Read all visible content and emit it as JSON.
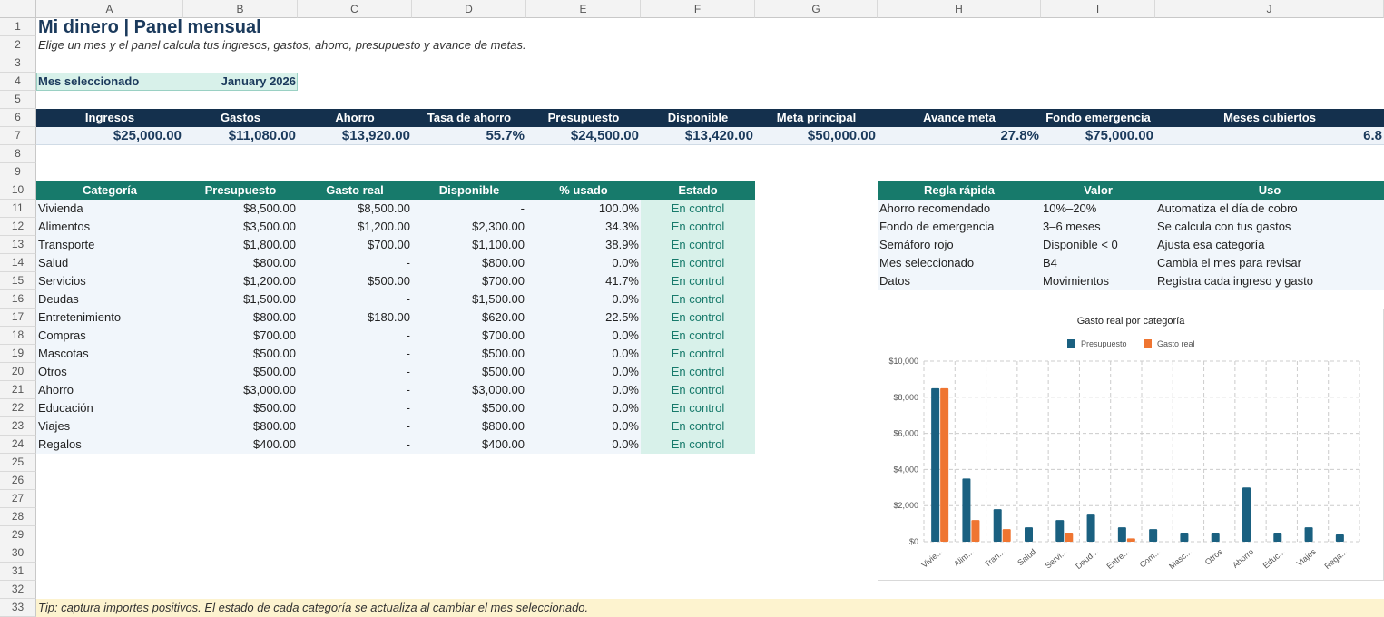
{
  "columns": [
    "A",
    "B",
    "C",
    "D",
    "E",
    "F",
    "G",
    "H",
    "I",
    "J"
  ],
  "rows": [
    "1",
    "2",
    "3",
    "4",
    "5",
    "6",
    "7",
    "8",
    "9",
    "10",
    "11",
    "12",
    "13",
    "14",
    "15",
    "16",
    "17",
    "18",
    "19",
    "20",
    "21",
    "22",
    "23",
    "24",
    "25",
    "26",
    "27",
    "28",
    "29",
    "30",
    "31",
    "32",
    "33"
  ],
  "sheet": {
    "title": "Mi dinero | Panel mensual",
    "subtitle": "Elige un mes y el panel calcula tus ingresos, gastos, ahorro, presupuesto y avance de metas.",
    "month_label": "Mes seleccionado",
    "month_value": "January 2026",
    "tip": "Tip: captura importes positivos. El estado de cada categoría se actualiza al cambiar el mes seleccionado."
  },
  "kpis": [
    {
      "label": "Ingresos",
      "value": "$25,000.00"
    },
    {
      "label": "Gastos",
      "value": "$11,080.00"
    },
    {
      "label": "Ahorro",
      "value": "$13,920.00"
    },
    {
      "label": "Tasa de ahorro",
      "value": "55.7%"
    },
    {
      "label": "Presupuesto",
      "value": "$24,500.00"
    },
    {
      "label": "Disponible",
      "value": "$13,420.00"
    },
    {
      "label": "Meta principal",
      "value": "$50,000.00"
    },
    {
      "label": "Avance meta",
      "value": "27.8%"
    },
    {
      "label": "Fondo emergencia",
      "value": "$75,000.00"
    },
    {
      "label": "Meses cubiertos",
      "value": "6.8"
    }
  ],
  "categories_table": {
    "headers": [
      "Categoría",
      "Presupuesto",
      "Gasto real",
      "Disponible",
      "% usado",
      "Estado"
    ],
    "rows": [
      [
        "Vivienda",
        "$8,500.00",
        "$8,500.00",
        "-",
        "100.0%",
        "En control"
      ],
      [
        "Alimentos",
        "$3,500.00",
        "$1,200.00",
        "$2,300.00",
        "34.3%",
        "En control"
      ],
      [
        "Transporte",
        "$1,800.00",
        "$700.00",
        "$1,100.00",
        "38.9%",
        "En control"
      ],
      [
        "Salud",
        "$800.00",
        "-",
        "$800.00",
        "0.0%",
        "En control"
      ],
      [
        "Servicios",
        "$1,200.00",
        "$500.00",
        "$700.00",
        "41.7%",
        "En control"
      ],
      [
        "Deudas",
        "$1,500.00",
        "-",
        "$1,500.00",
        "0.0%",
        "En control"
      ],
      [
        "Entretenimiento",
        "$800.00",
        "$180.00",
        "$620.00",
        "22.5%",
        "En control"
      ],
      [
        "Compras",
        "$700.00",
        "-",
        "$700.00",
        "0.0%",
        "En control"
      ],
      [
        "Mascotas",
        "$500.00",
        "-",
        "$500.00",
        "0.0%",
        "En control"
      ],
      [
        "Otros",
        "$500.00",
        "-",
        "$500.00",
        "0.0%",
        "En control"
      ],
      [
        "Ahorro",
        "$3,000.00",
        "-",
        "$3,000.00",
        "0.0%",
        "En control"
      ],
      [
        "Educación",
        "$500.00",
        "-",
        "$500.00",
        "0.0%",
        "En control"
      ],
      [
        "Viajes",
        "$800.00",
        "-",
        "$800.00",
        "0.0%",
        "En control"
      ],
      [
        "Regalos",
        "$400.00",
        "-",
        "$400.00",
        "0.0%",
        "En control"
      ]
    ]
  },
  "rules_table": {
    "headers": [
      "Regla rápida",
      "Valor",
      "Uso"
    ],
    "rows": [
      [
        "Ahorro recomendado",
        "10%–20%",
        "Automatiza el día de cobro"
      ],
      [
        "Fondo de emergencia",
        "3–6 meses",
        "Se calcula con tus gastos"
      ],
      [
        "Semáforo rojo",
        "Disponible < 0",
        "Ajusta esa categoría"
      ],
      [
        "Mes seleccionado",
        "B4",
        "Cambia el mes para revisar"
      ],
      [
        "Datos",
        "Movimientos",
        "Registra cada ingreso y gasto"
      ]
    ]
  },
  "colors": {
    "dark_header": "#14304d",
    "teal_header": "#177a6b",
    "status_bg": "#d8f1ea",
    "series_presupuesto": "#1a6080",
    "series_gasto": "#ef7531",
    "tip_bg": "#fdf3cf"
  },
  "chart_data": {
    "type": "bar",
    "title": "Gasto real por categoría",
    "categories": [
      "Vivie...",
      "Alim...",
      "Tran...",
      "Salud",
      "Servi...",
      "Deud...",
      "Entre...",
      "Com...",
      "Masc...",
      "Otros",
      "Ahorro",
      "Educ...",
      "Viajes",
      "Rega..."
    ],
    "series": [
      {
        "name": "Presupuesto",
        "color": "#1a6080",
        "values": [
          8500,
          3500,
          1800,
          800,
          1200,
          1500,
          800,
          700,
          500,
          500,
          3000,
          500,
          800,
          400
        ]
      },
      {
        "name": "Gasto real",
        "color": "#ef7531",
        "values": [
          8500,
          1200,
          700,
          0,
          500,
          0,
          180,
          0,
          0,
          0,
          0,
          0,
          0,
          0
        ]
      }
    ],
    "y_ticks": [
      "$0",
      "$2,000",
      "$4,000",
      "$6,000",
      "$8,000",
      "$10,000"
    ],
    "ylim": [
      0,
      10000
    ],
    "legend": "top",
    "grid": true
  }
}
